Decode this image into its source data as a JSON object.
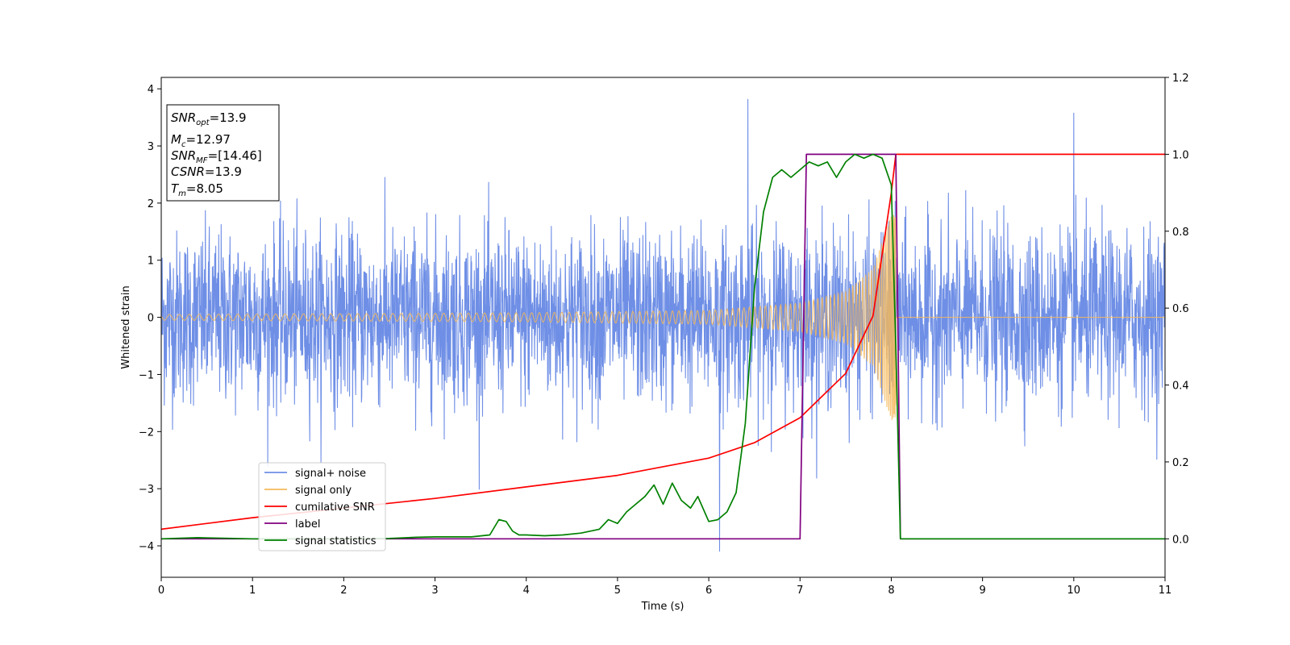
{
  "chart_data": {
    "type": "line",
    "xlabel": "Time (s)",
    "ylabel": "Whitened strain",
    "xlim": [
      0,
      11
    ],
    "ylim_left": [
      -4.55,
      4.2
    ],
    "ylim_right": [
      -0.1,
      1.2
    ],
    "xticks": [
      0,
      1,
      2,
      3,
      4,
      5,
      6,
      7,
      8,
      9,
      10,
      11
    ],
    "yticks_left": [
      -4,
      -3,
      -2,
      -1,
      0,
      1,
      2,
      3,
      4
    ],
    "yticks_right": [
      0.0,
      0.2,
      0.4,
      0.6,
      0.8,
      1.0,
      1.2
    ],
    "grid": false,
    "legend_position": "lower-left",
    "series": [
      {
        "name": "signal+ noise",
        "axis": "left",
        "color": "#6f8fe6",
        "kind": "noise",
        "noise_std": 0.75,
        "x_range": [
          0,
          11
        ],
        "num_points": 3300,
        "notable_points": [
          {
            "x": 6.43,
            "y": 3.82
          },
          {
            "x": 6.12,
            "y": -4.15
          },
          {
            "x": 10.0,
            "y": 3.58
          }
        ]
      },
      {
        "name": "signal only",
        "axis": "left",
        "color": "#f5b95b",
        "kind": "chirp",
        "merger_time": 8.05,
        "x_range": [
          0,
          11
        ],
        "envelope": [
          {
            "x": 0,
            "y": 0.05
          },
          {
            "x": 4,
            "y": 0.08
          },
          {
            "x": 6,
            "y": 0.12
          },
          {
            "x": 7,
            "y": 0.25
          },
          {
            "x": 7.5,
            "y": 0.45
          },
          {
            "x": 7.8,
            "y": 0.85
          },
          {
            "x": 8.0,
            "y": 1.8
          }
        ]
      },
      {
        "name": "cumilative SNR",
        "axis": "right",
        "color": "#ff0000",
        "x": [
          0,
          1,
          2,
          3,
          4,
          5,
          6,
          6.5,
          7,
          7.5,
          7.8,
          8.0,
          8.05,
          8.1,
          11
        ],
        "values": [
          0.025,
          0.055,
          0.08,
          0.105,
          0.135,
          0.165,
          0.21,
          0.25,
          0.315,
          0.43,
          0.58,
          0.9,
          1.0,
          1.0,
          1.0
        ]
      },
      {
        "name": "label",
        "axis": "right",
        "color": "#800080",
        "x": [
          0,
          7.0,
          7.07,
          8.05,
          8.1,
          11
        ],
        "values": [
          0,
          0,
          1,
          1,
          0,
          0
        ]
      },
      {
        "name": "signal statistics",
        "axis": "right",
        "color": "#008000",
        "x": [
          0,
          0.4,
          1,
          2,
          2.5,
          2.8,
          3.0,
          3.2,
          3.4,
          3.6,
          3.7,
          3.78,
          3.85,
          3.92,
          4.0,
          4.2,
          4.4,
          4.6,
          4.8,
          4.9,
          5.0,
          5.1,
          5.2,
          5.3,
          5.4,
          5.5,
          5.6,
          5.7,
          5.8,
          5.88,
          6.0,
          6.1,
          6.2,
          6.3,
          6.4,
          6.5,
          6.6,
          6.7,
          6.8,
          6.9,
          7.0,
          7.1,
          7.2,
          7.3,
          7.4,
          7.5,
          7.6,
          7.7,
          7.8,
          7.9,
          8.0,
          8.05,
          8.1,
          8.13,
          8.2,
          11
        ],
        "values": [
          0.0,
          0.003,
          0.0,
          0.0,
          0.001,
          0.004,
          0.005,
          0.005,
          0.005,
          0.01,
          0.05,
          0.045,
          0.02,
          0.01,
          0.01,
          0.008,
          0.01,
          0.015,
          0.025,
          0.05,
          0.04,
          0.07,
          0.09,
          0.11,
          0.14,
          0.09,
          0.145,
          0.1,
          0.08,
          0.11,
          0.045,
          0.05,
          0.07,
          0.12,
          0.3,
          0.65,
          0.85,
          0.94,
          0.96,
          0.94,
          0.96,
          0.98,
          0.97,
          0.98,
          0.94,
          0.98,
          1.0,
          0.99,
          1.0,
          0.99,
          0.92,
          0.5,
          0.0,
          0.0,
          0.0,
          0.0
        ]
      }
    ],
    "annotations": [
      {
        "base": "SNR",
        "sub": "opt",
        "value": "=13.9"
      },
      {
        "base": "M",
        "sub": "c",
        "value": "=12.97"
      },
      {
        "base": "SNR",
        "sub": "MF",
        "value": "=[14.46]"
      },
      {
        "base": "CSNR",
        "sub": "",
        "value": "=13.9"
      },
      {
        "base": "T",
        "sub": "m",
        "value": "=8.05"
      }
    ]
  }
}
